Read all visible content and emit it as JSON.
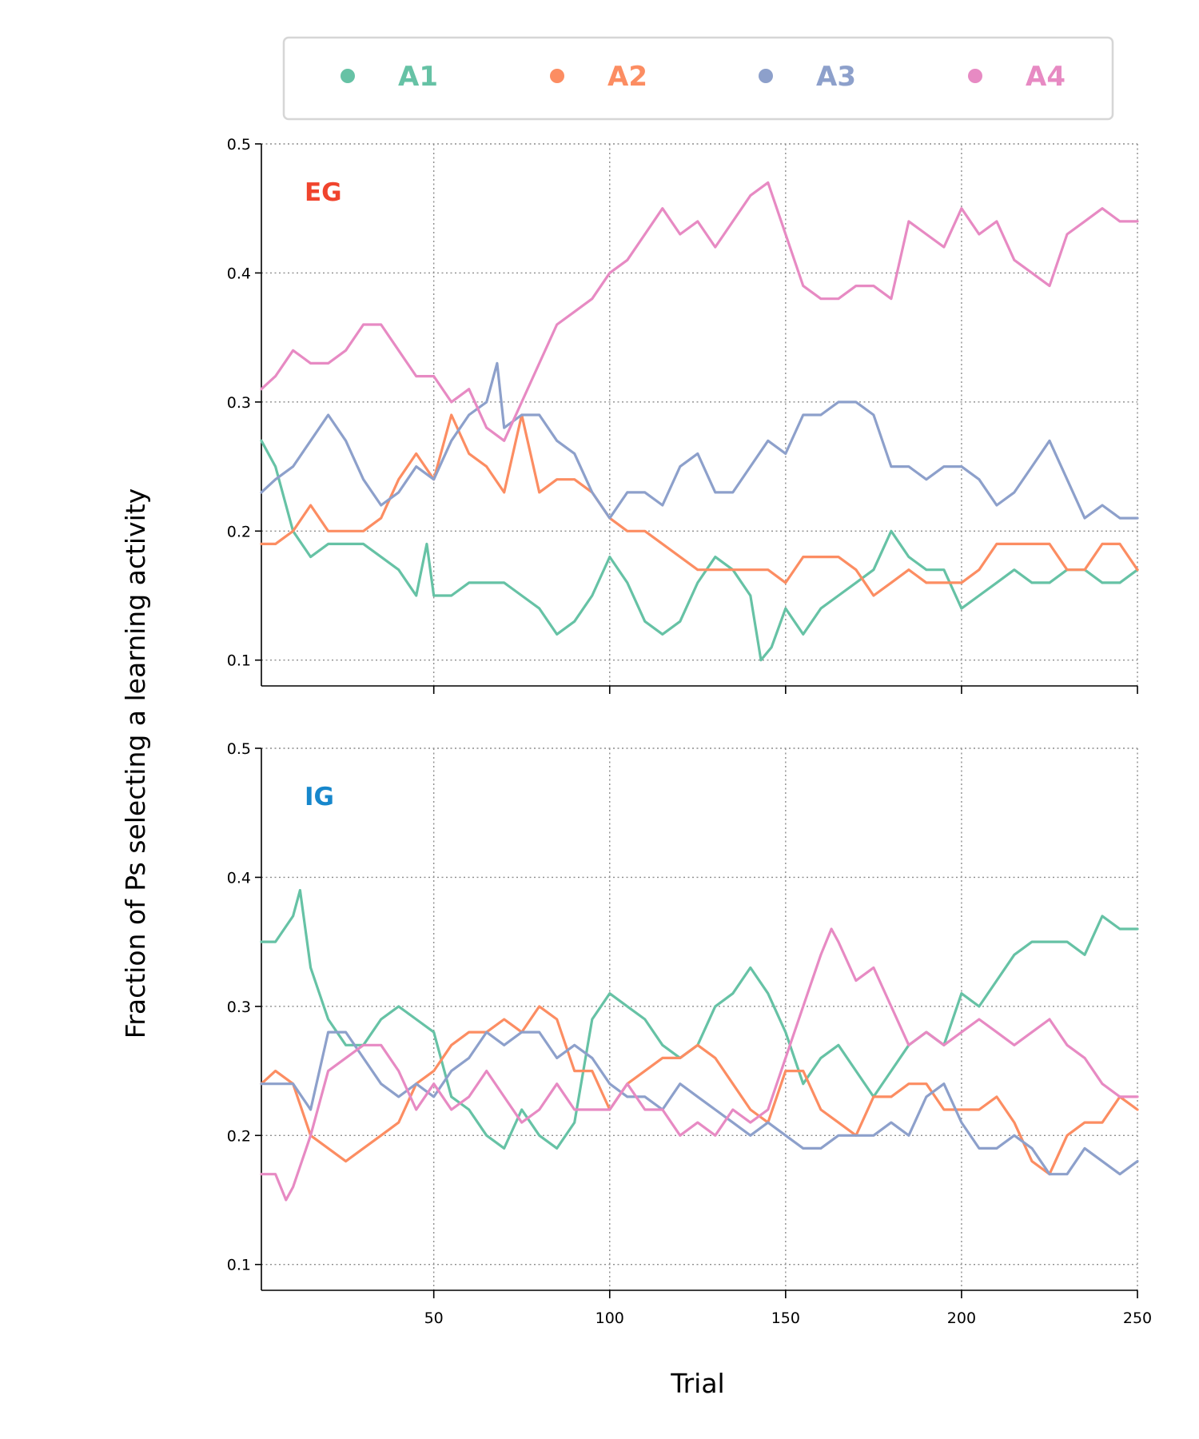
{
  "chart_data": {
    "type": "line",
    "xlabel": "Trial",
    "ylabel": "Fraction of Ps selecting a learning activity",
    "xlim": [
      1,
      250
    ],
    "ylim": [
      0.08,
      0.5
    ],
    "x_ticks": [
      50,
      100,
      150,
      200,
      250
    ],
    "y_ticks": [
      "0.1",
      "0.2",
      "0.3",
      "0.4",
      "0.5"
    ],
    "grid": true,
    "legend": {
      "placement": "top",
      "entries": [
        {
          "label": "A1",
          "color": "#66c2a5"
        },
        {
          "label": "A2",
          "color": "#fc8d62"
        },
        {
          "label": "A3",
          "color": "#8da0cb"
        },
        {
          "label": "A4",
          "color": "#e78ac3"
        }
      ]
    },
    "panels": [
      {
        "label": "EG",
        "label_color": "#f0442d",
        "series": [
          {
            "name": "A1",
            "color": "#66c2a5",
            "x": [
              1,
              5,
              10,
              15,
              20,
              25,
              30,
              35,
              40,
              45,
              48,
              50,
              55,
              60,
              65,
              70,
              75,
              80,
              85,
              90,
              95,
              100,
              105,
              110,
              115,
              120,
              125,
              130,
              135,
              140,
              143,
              146,
              150,
              155,
              160,
              165,
              170,
              175,
              180,
              185,
              190,
              195,
              200,
              205,
              210,
              215,
              220,
              225,
              230,
              235,
              240,
              245,
              250
            ],
            "y": [
              0.27,
              0.25,
              0.2,
              0.18,
              0.19,
              0.19,
              0.19,
              0.18,
              0.17,
              0.15,
              0.19,
              0.15,
              0.15,
              0.16,
              0.16,
              0.16,
              0.15,
              0.14,
              0.12,
              0.13,
              0.15,
              0.18,
              0.16,
              0.13,
              0.12,
              0.13,
              0.16,
              0.18,
              0.17,
              0.15,
              0.1,
              0.11,
              0.14,
              0.12,
              0.14,
              0.15,
              0.16,
              0.17,
              0.2,
              0.18,
              0.17,
              0.17,
              0.14,
              0.15,
              0.16,
              0.17,
              0.16,
              0.16,
              0.17,
              0.17,
              0.16,
              0.16,
              0.17
            ]
          },
          {
            "name": "A2",
            "color": "#fc8d62",
            "x": [
              1,
              5,
              10,
              15,
              20,
              25,
              30,
              35,
              40,
              45,
              50,
              55,
              60,
              65,
              70,
              75,
              80,
              85,
              90,
              95,
              100,
              105,
              110,
              115,
              120,
              125,
              130,
              135,
              140,
              145,
              150,
              155,
              160,
              165,
              170,
              175,
              180,
              185,
              190,
              195,
              200,
              205,
              210,
              215,
              220,
              225,
              230,
              235,
              240,
              245,
              250
            ],
            "y": [
              0.19,
              0.19,
              0.2,
              0.22,
              0.2,
              0.2,
              0.2,
              0.21,
              0.24,
              0.26,
              0.24,
              0.29,
              0.26,
              0.25,
              0.23,
              0.29,
              0.23,
              0.24,
              0.24,
              0.23,
              0.21,
              0.2,
              0.2,
              0.19,
              0.18,
              0.17,
              0.17,
              0.17,
              0.17,
              0.17,
              0.16,
              0.18,
              0.18,
              0.18,
              0.17,
              0.15,
              0.16,
              0.17,
              0.16,
              0.16,
              0.16,
              0.17,
              0.19,
              0.19,
              0.19,
              0.19,
              0.17,
              0.17,
              0.19,
              0.19,
              0.17
            ]
          },
          {
            "name": "A3",
            "color": "#8da0cb",
            "x": [
              1,
              5,
              10,
              15,
              20,
              25,
              30,
              35,
              40,
              45,
              50,
              55,
              60,
              65,
              68,
              70,
              75,
              80,
              85,
              90,
              95,
              100,
              105,
              110,
              115,
              120,
              125,
              130,
              135,
              140,
              145,
              150,
              155,
              160,
              165,
              170,
              175,
              180,
              185,
              190,
              195,
              200,
              205,
              210,
              215,
              220,
              225,
              230,
              235,
              240,
              245,
              250
            ],
            "y": [
              0.23,
              0.24,
              0.25,
              0.27,
              0.29,
              0.27,
              0.24,
              0.22,
              0.23,
              0.25,
              0.24,
              0.27,
              0.29,
              0.3,
              0.33,
              0.28,
              0.29,
              0.29,
              0.27,
              0.26,
              0.23,
              0.21,
              0.23,
              0.23,
              0.22,
              0.25,
              0.26,
              0.23,
              0.23,
              0.25,
              0.27,
              0.26,
              0.29,
              0.29,
              0.3,
              0.3,
              0.29,
              0.25,
              0.25,
              0.24,
              0.25,
              0.25,
              0.24,
              0.22,
              0.23,
              0.25,
              0.27,
              0.24,
              0.21,
              0.22,
              0.21,
              0.21
            ]
          },
          {
            "name": "A4",
            "color": "#e78ac3",
            "x": [
              1,
              5,
              10,
              15,
              20,
              25,
              30,
              35,
              40,
              45,
              50,
              55,
              60,
              65,
              70,
              75,
              80,
              85,
              90,
              95,
              100,
              105,
              110,
              115,
              120,
              125,
              130,
              135,
              140,
              145,
              150,
              155,
              160,
              165,
              170,
              175,
              180,
              185,
              190,
              195,
              200,
              205,
              210,
              215,
              220,
              225,
              230,
              235,
              240,
              245,
              250
            ],
            "y": [
              0.31,
              0.32,
              0.34,
              0.33,
              0.33,
              0.34,
              0.36,
              0.36,
              0.34,
              0.32,
              0.32,
              0.3,
              0.31,
              0.28,
              0.27,
              0.3,
              0.33,
              0.36,
              0.37,
              0.38,
              0.4,
              0.41,
              0.43,
              0.45,
              0.43,
              0.44,
              0.42,
              0.44,
              0.46,
              0.47,
              0.43,
              0.39,
              0.38,
              0.38,
              0.39,
              0.39,
              0.38,
              0.44,
              0.43,
              0.42,
              0.45,
              0.43,
              0.44,
              0.41,
              0.4,
              0.39,
              0.43,
              0.44,
              0.45,
              0.44,
              0.44
            ]
          }
        ]
      },
      {
        "label": "IG",
        "label_color": "#1787cc",
        "series": [
          {
            "name": "A1",
            "color": "#66c2a5",
            "x": [
              1,
              5,
              10,
              12,
              15,
              20,
              25,
              30,
              35,
              40,
              45,
              50,
              55,
              60,
              65,
              70,
              75,
              80,
              85,
              90,
              95,
              100,
              105,
              110,
              115,
              120,
              125,
              130,
              135,
              140,
              145,
              150,
              155,
              160,
              165,
              170,
              175,
              180,
              185,
              190,
              195,
              200,
              205,
              210,
              215,
              220,
              225,
              230,
              235,
              240,
              245,
              250
            ],
            "y": [
              0.35,
              0.35,
              0.37,
              0.39,
              0.33,
              0.29,
              0.27,
              0.27,
              0.29,
              0.3,
              0.29,
              0.28,
              0.23,
              0.22,
              0.2,
              0.19,
              0.22,
              0.2,
              0.19,
              0.21,
              0.29,
              0.31,
              0.3,
              0.29,
              0.27,
              0.26,
              0.27,
              0.3,
              0.31,
              0.33,
              0.31,
              0.28,
              0.24,
              0.26,
              0.27,
              0.25,
              0.23,
              0.25,
              0.27,
              0.28,
              0.27,
              0.31,
              0.3,
              0.32,
              0.34,
              0.35,
              0.35,
              0.35,
              0.34,
              0.37,
              0.36,
              0.36
            ]
          },
          {
            "name": "A2",
            "color": "#fc8d62",
            "x": [
              1,
              5,
              10,
              15,
              20,
              25,
              30,
              35,
              40,
              45,
              50,
              55,
              60,
              65,
              70,
              75,
              80,
              85,
              90,
              95,
              100,
              105,
              110,
              115,
              120,
              125,
              130,
              135,
              140,
              145,
              150,
              155,
              160,
              165,
              170,
              175,
              180,
              185,
              190,
              195,
              200,
              205,
              210,
              215,
              220,
              225,
              230,
              235,
              240,
              245,
              250
            ],
            "y": [
              0.24,
              0.25,
              0.24,
              0.2,
              0.19,
              0.18,
              0.19,
              0.2,
              0.21,
              0.24,
              0.25,
              0.27,
              0.28,
              0.28,
              0.29,
              0.28,
              0.3,
              0.29,
              0.25,
              0.25,
              0.22,
              0.24,
              0.25,
              0.26,
              0.26,
              0.27,
              0.26,
              0.24,
              0.22,
              0.21,
              0.25,
              0.25,
              0.22,
              0.21,
              0.2,
              0.23,
              0.23,
              0.24,
              0.24,
              0.22,
              0.22,
              0.22,
              0.23,
              0.21,
              0.18,
              0.17,
              0.2,
              0.21,
              0.21,
              0.23,
              0.22
            ]
          },
          {
            "name": "A3",
            "color": "#8da0cb",
            "x": [
              1,
              5,
              10,
              15,
              20,
              25,
              30,
              35,
              40,
              45,
              50,
              55,
              60,
              65,
              70,
              75,
              80,
              85,
              90,
              95,
              100,
              105,
              110,
              115,
              120,
              125,
              130,
              135,
              140,
              145,
              150,
              155,
              160,
              165,
              170,
              175,
              180,
              185,
              190,
              195,
              200,
              205,
              210,
              215,
              220,
              225,
              230,
              235,
              240,
              245,
              250
            ],
            "y": [
              0.24,
              0.24,
              0.24,
              0.22,
              0.28,
              0.28,
              0.26,
              0.24,
              0.23,
              0.24,
              0.23,
              0.25,
              0.26,
              0.28,
              0.27,
              0.28,
              0.28,
              0.26,
              0.27,
              0.26,
              0.24,
              0.23,
              0.23,
              0.22,
              0.24,
              0.23,
              0.22,
              0.21,
              0.2,
              0.21,
              0.2,
              0.19,
              0.19,
              0.2,
              0.2,
              0.2,
              0.21,
              0.2,
              0.23,
              0.24,
              0.21,
              0.19,
              0.19,
              0.2,
              0.19,
              0.17,
              0.17,
              0.19,
              0.18,
              0.17,
              0.18
            ]
          },
          {
            "name": "A4",
            "color": "#e78ac3",
            "x": [
              1,
              5,
              8,
              10,
              15,
              20,
              25,
              30,
              35,
              40,
              45,
              50,
              55,
              60,
              65,
              70,
              75,
              80,
              85,
              90,
              95,
              100,
              105,
              110,
              115,
              120,
              125,
              130,
              135,
              140,
              145,
              150,
              155,
              160,
              163,
              165,
              170,
              175,
              180,
              185,
              190,
              195,
              200,
              205,
              210,
              215,
              220,
              225,
              230,
              235,
              240,
              245,
              250
            ],
            "y": [
              0.17,
              0.17,
              0.15,
              0.16,
              0.2,
              0.25,
              0.26,
              0.27,
              0.27,
              0.25,
              0.22,
              0.24,
              0.22,
              0.23,
              0.25,
              0.23,
              0.21,
              0.22,
              0.24,
              0.22,
              0.22,
              0.22,
              0.24,
              0.22,
              0.22,
              0.2,
              0.21,
              0.2,
              0.22,
              0.21,
              0.22,
              0.26,
              0.3,
              0.34,
              0.36,
              0.35,
              0.32,
              0.33,
              0.3,
              0.27,
              0.28,
              0.27,
              0.28,
              0.29,
              0.28,
              0.27,
              0.28,
              0.29,
              0.27,
              0.26,
              0.24,
              0.23,
              0.23
            ]
          }
        ]
      }
    ]
  }
}
